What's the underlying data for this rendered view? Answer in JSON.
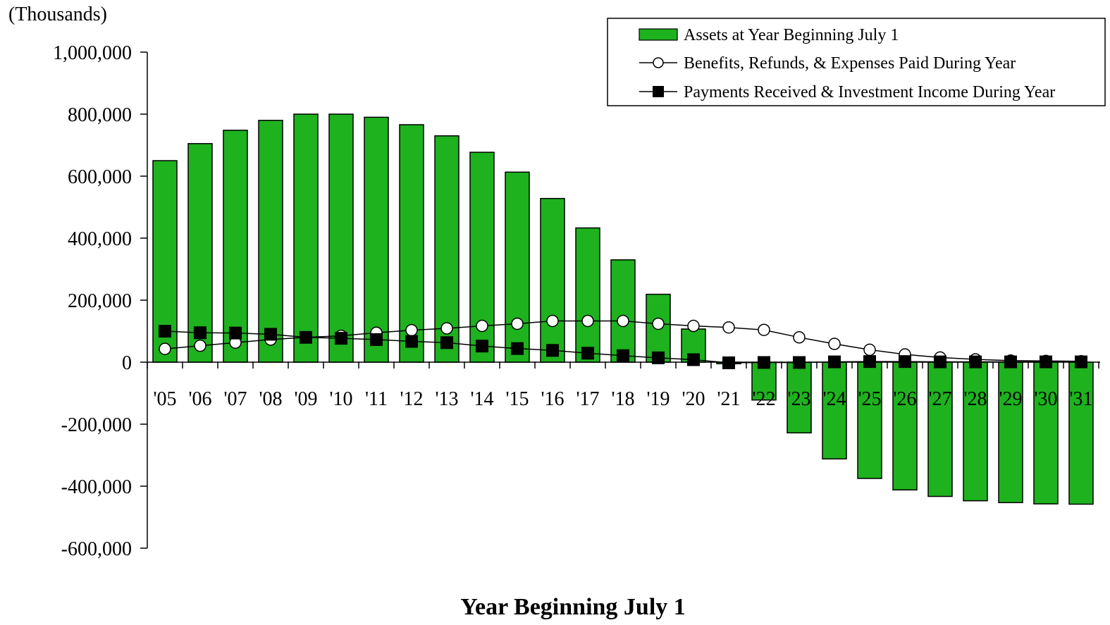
{
  "chart_data": {
    "type": "bar",
    "unit_label": "(Thousands)",
    "xlabel": "Year Beginning July 1",
    "ylabel": "",
    "ylim": [
      -600000,
      1000000
    ],
    "yticks": [
      1000000,
      800000,
      600000,
      400000,
      200000,
      0,
      -200000,
      -400000,
      -600000
    ],
    "ytick_labels": [
      "1,000,000",
      "800,000",
      "600,000",
      "400,000",
      "200,000",
      "0",
      "-200,000",
      "-400,000",
      "-600,000"
    ],
    "categories": [
      "'05",
      "'06",
      "'07",
      "'08",
      "'09",
      "'10",
      "'11",
      "'12",
      "'13",
      "'14",
      "'15",
      "'16",
      "'17",
      "'18",
      "'19",
      "'20",
      "'21",
      "'22",
      "'23",
      "'24",
      "'25",
      "'26",
      "'27",
      "'28",
      "'29",
      "'30",
      "'31"
    ],
    "grid": false,
    "legend_position": "top-right",
    "series": [
      {
        "name": "Assets at Year Beginning July 1",
        "kind": "bar",
        "color": "#1EB21E",
        "values": [
          650000,
          705000,
          748000,
          780000,
          800000,
          800000,
          790000,
          766000,
          730000,
          677000,
          613000,
          528000,
          433000,
          330000,
          219000,
          107000,
          -5000,
          -122000,
          -228000,
          -312000,
          -375000,
          -412000,
          -433000,
          -447000,
          -453000,
          -457000,
          -458000
        ]
      },
      {
        "name": "Benefits, Refunds, & Expenses Paid During Year",
        "kind": "line",
        "marker": "circle-open",
        "values": [
          43000,
          53000,
          63000,
          73000,
          80000,
          85000,
          95000,
          103000,
          109000,
          117000,
          124000,
          133000,
          133000,
          133000,
          124000,
          117000,
          112000,
          104000,
          80000,
          59000,
          40000,
          25000,
          15000,
          9000,
          5000,
          4000,
          3000
        ]
      },
      {
        "name": "Payments Received & Investment Income During Year",
        "kind": "line",
        "marker": "square-filled",
        "values": [
          100000,
          95000,
          94000,
          90000,
          80000,
          77000,
          73000,
          67000,
          63000,
          52000,
          44000,
          38000,
          29000,
          21000,
          14000,
          8000,
          -2000,
          -1000,
          -1000,
          1000,
          2000,
          2000,
          1000,
          1000,
          1000,
          1000,
          1000
        ]
      }
    ]
  }
}
